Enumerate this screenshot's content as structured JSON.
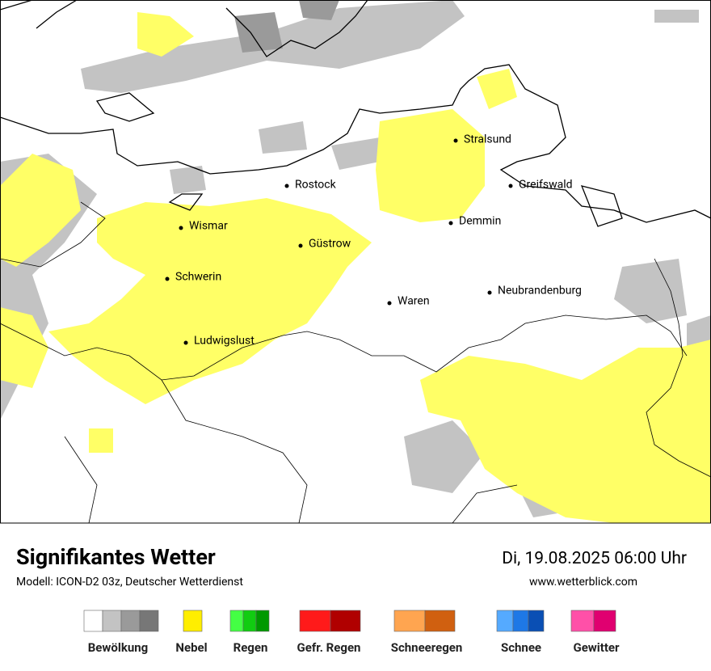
{
  "map": {
    "cities": [
      "Stralsund",
      "Rostock",
      "Greifswald",
      "Wismar",
      "Demmin",
      "Güstrow",
      "Schwerin",
      "Neubrandenburg",
      "Waren",
      "Ludwigslust"
    ]
  },
  "footer": {
    "title": "Signifikantes Wetter",
    "model": "Modell: ICON-D2 03z, Deutscher Wetterdienst",
    "datetime": "Di, 19.08.2025 06:00 Uhr",
    "website": "www.wetterblick.com"
  },
  "legend": [
    "Bewölkung",
    "Nebel",
    "Regen",
    "Gefr. Regen",
    "Schneeregen",
    "Schnee",
    "Gewitter"
  ]
}
